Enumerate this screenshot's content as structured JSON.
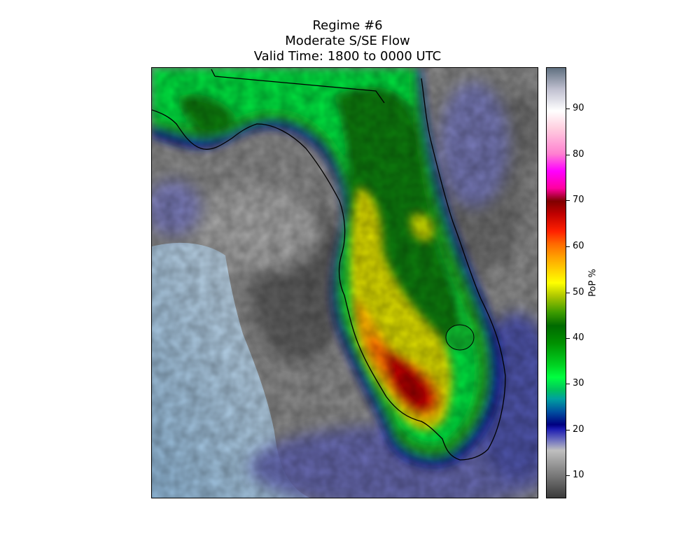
{
  "title": {
    "line1": "Regime #6",
    "line2": "Moderate S/SE Flow",
    "line3": "Valid Time: 1800 to 0000 UTC"
  },
  "colorbar": {
    "label": "PoP %",
    "ticks": [
      "10",
      "20",
      "30",
      "40",
      "50",
      "60",
      "70",
      "80",
      "90"
    ],
    "range": [
      5,
      99
    ]
  },
  "colors": {
    "water": "#a9c8e2",
    "low_gray": "#8a8a8a",
    "dark_gray": "#5a5a5a",
    "blue_purple": "#5b5fae",
    "navy": "#0a1a8f",
    "green": "#1ea01e",
    "bright_green": "#00e640",
    "dark_green": "#0b7d0b",
    "yellow": "#f2e600",
    "orange": "#ff9a00",
    "red": "#e00000",
    "dark_red": "#b00000"
  }
}
